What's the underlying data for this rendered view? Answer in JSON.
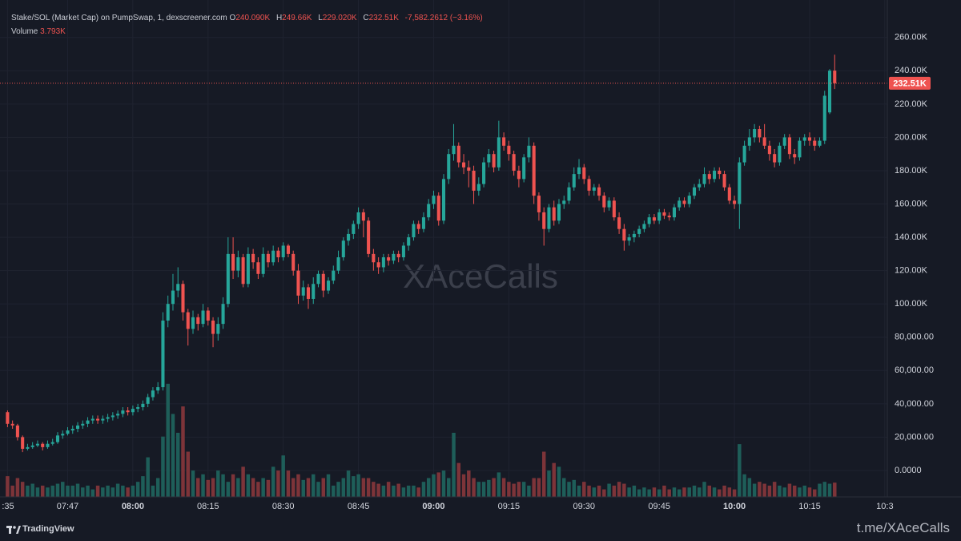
{
  "chart_data": {
    "type": "candlestick",
    "title": "Stake/SOL (Market Cap) on PumpSwap, 1, dexscreener.com",
    "ohlc_legend": {
      "o_label": "O",
      "o": "240.090K",
      "h_label": "H",
      "h": "249.66K",
      "l_label": "L",
      "l": "229.020K",
      "c_label": "C",
      "c": "232.51K",
      "change": "-7,582.2612 (−3.16%)"
    },
    "volume_label": "Volume",
    "volume_value": "3.793K",
    "last_price_label": "232.51K",
    "watermark": "XAceCalls",
    "x": [
      455,
      456,
      457,
      458,
      459,
      460,
      461,
      462,
      463,
      464,
      465,
      466,
      467,
      468,
      469,
      470,
      471,
      472,
      473,
      474,
      475,
      476,
      477,
      478,
      479,
      480,
      481,
      482,
      483,
      484,
      485,
      486,
      487,
      488,
      489,
      490,
      491,
      492,
      493,
      494,
      495,
      496,
      497,
      498,
      499,
      500,
      501,
      502,
      503,
      504,
      505,
      506,
      507,
      508,
      509,
      510,
      511,
      512,
      513,
      514,
      515,
      516,
      517,
      518,
      519,
      520,
      521,
      522,
      523,
      524,
      525,
      526,
      527,
      528,
      529,
      530,
      531,
      532,
      533,
      534,
      535,
      536,
      537,
      538,
      539,
      540,
      541,
      542,
      543,
      544,
      545,
      546,
      547,
      548,
      549,
      550,
      551,
      552,
      553,
      554,
      555,
      556,
      557,
      558,
      559,
      560,
      561,
      562,
      563,
      564,
      565,
      566,
      567,
      568,
      569,
      570,
      571,
      572,
      573,
      574,
      575,
      576,
      577,
      578,
      579,
      580,
      581,
      582,
      583,
      584,
      585,
      586,
      587,
      588,
      589,
      590,
      591,
      592,
      593,
      594,
      595,
      596,
      597,
      598,
      599,
      600,
      601,
      602,
      603,
      604,
      605,
      606,
      607,
      608,
      609,
      610,
      611,
      612,
      613,
      614,
      615,
      616,
      617,
      618,
      619,
      620
    ],
    "open": [
      35000,
      28000,
      27000,
      20000,
      13000,
      14000,
      15000,
      16000,
      14000,
      16000,
      17000,
      21000,
      22000,
      24000,
      25000,
      27000,
      28000,
      30000,
      31000,
      30000,
      31000,
      32000,
      33000,
      34000,
      36000,
      35000,
      37000,
      38000,
      40000,
      44000,
      48000,
      50000,
      90000,
      100000,
      108000,
      112000,
      95000,
      85000,
      92000,
      88000,
      96000,
      90000,
      82000,
      88000,
      100000,
      130000,
      120000,
      128000,
      112000,
      130000,
      125000,
      118000,
      130000,
      125000,
      132000,
      128000,
      135000,
      130000,
      120000,
      105000,
      110000,
      103000,
      112000,
      118000,
      108000,
      114000,
      120000,
      128000,
      138000,
      142000,
      148000,
      155000,
      150000,
      130000,
      125000,
      122000,
      128000,
      126000,
      130000,
      128000,
      135000,
      140000,
      148000,
      145000,
      152000,
      160000,
      165000,
      150000,
      175000,
      190000,
      195000,
      185000,
      182000,
      180000,
      168000,
      172000,
      185000,
      190000,
      182000,
      200000,
      195000,
      190000,
      180000,
      175000,
      188000,
      195000,
      165000,
      155000,
      145000,
      158000,
      150000,
      160000,
      162000,
      170000,
      178000,
      182000,
      175000,
      168000,
      170000,
      165000,
      158000,
      162000,
      152000,
      145000,
      138000,
      140000,
      142000,
      145000,
      148000,
      152000,
      150000,
      155000,
      153000,
      152000,
      158000,
      162000,
      160000,
      165000,
      170000,
      172000,
      178000,
      175000,
      180000,
      178000,
      170000,
      162000,
      160000,
      185000,
      195000,
      200000,
      205000,
      200000,
      195000,
      190000,
      185000,
      195000,
      200000,
      190000,
      188000,
      198000,
      200000,
      198000,
      195000,
      198000,
      215000,
      240090
    ],
    "high": [
      36000,
      30000,
      28000,
      21000,
      16000,
      17000,
      18000,
      17000,
      18000,
      19000,
      23000,
      24000,
      26000,
      27000,
      29000,
      30000,
      32000,
      33000,
      33000,
      33000,
      34000,
      35000,
      36000,
      38000,
      38000,
      39000,
      40000,
      42000,
      46000,
      50000,
      53000,
      95000,
      105000,
      118000,
      122000,
      114000,
      97000,
      96000,
      94000,
      100000,
      98000,
      92000,
      92000,
      104000,
      140000,
      140000,
      132000,
      130000,
      134000,
      133000,
      128000,
      134000,
      132000,
      135000,
      134000,
      137000,
      136000,
      132000,
      124000,
      114000,
      112000,
      116000,
      120000,
      120000,
      116000,
      123000,
      132000,
      140000,
      145000,
      150000,
      158000,
      157000,
      152000,
      133000,
      128000,
      130000,
      130000,
      132000,
      132000,
      137000,
      142000,
      150000,
      150000,
      155000,
      163000,
      168000,
      167000,
      178000,
      193000,
      208000,
      197000,
      190000,
      186000,
      183000,
      176000,
      188000,
      193000,
      192000,
      210000,
      203000,
      198000,
      192000,
      183000,
      190000,
      200000,
      197000,
      167000,
      158000,
      160000,
      162000,
      163000,
      165000,
      173000,
      182000,
      187000,
      184000,
      177000,
      172000,
      172000,
      167000,
      164000,
      164000,
      155000,
      148000,
      142000,
      144000,
      147000,
      150000,
      154000,
      154000,
      157000,
      157000,
      155000,
      160000,
      164000,
      164000,
      167000,
      172000,
      175000,
      182000,
      180000,
      182000,
      182000,
      180000,
      172000,
      165000,
      188000,
      198000,
      205000,
      208000,
      207000,
      208000,
      198000,
      193000,
      197000,
      202000,
      202000,
      193000,
      200000,
      202000,
      203000,
      200000,
      200000,
      228000,
      241000,
      249660
    ],
    "low": [
      26000,
      25000,
      18000,
      11000,
      12000,
      13000,
      14000,
      12000,
      13000,
      15000,
      16000,
      19000,
      21000,
      22000,
      23000,
      25000,
      26000,
      28000,
      28000,
      28000,
      29000,
      30000,
      31000,
      32000,
      33000,
      33000,
      35000,
      36000,
      38000,
      42000,
      46000,
      48000,
      86000,
      96000,
      104000,
      90000,
      75000,
      82000,
      84000,
      86000,
      87000,
      74000,
      78000,
      85000,
      98000,
      115000,
      116000,
      110000,
      110000,
      121000,
      115000,
      116000,
      122000,
      123000,
      125000,
      126000,
      128000,
      117000,
      100000,
      102000,
      97000,
      100000,
      110000,
      104000,
      106000,
      112000,
      118000,
      126000,
      135000,
      139000,
      145000,
      140000,
      128000,
      120000,
      118000,
      119000,
      123000,
      124000,
      125000,
      126000,
      132000,
      138000,
      142000,
      143000,
      150000,
      157000,
      147000,
      148000,
      172000,
      186000,
      182000,
      178000,
      170000,
      160000,
      165000,
      170000,
      182000,
      179000,
      180000,
      192000,
      186000,
      177000,
      170000,
      173000,
      185000,
      160000,
      150000,
      135000,
      143000,
      147000,
      148000,
      157000,
      160000,
      168000,
      175000,
      172000,
      165000,
      165000,
      162000,
      155000,
      156000,
      150000,
      142000,
      132000,
      135000,
      137000,
      140000,
      143000,
      146000,
      148000,
      148000,
      151000,
      150000,
      150000,
      156000,
      158000,
      158000,
      163000,
      168000,
      170000,
      172000,
      173000,
      175000,
      168000,
      160000,
      157000,
      145000,
      183000,
      192000,
      197000,
      197000,
      193000,
      186000,
      182000,
      183000,
      193000,
      187000,
      184000,
      186000,
      195000,
      195000,
      192000,
      194000,
      196000,
      214000,
      229020
    ],
    "close": [
      28000,
      27000,
      20000,
      13000,
      14000,
      15000,
      16000,
      14000,
      16000,
      17000,
      21000,
      22000,
      24000,
      25000,
      27000,
      28000,
      30000,
      31000,
      30000,
      31000,
      32000,
      33000,
      34000,
      36000,
      35000,
      37000,
      38000,
      40000,
      44000,
      48000,
      50000,
      90000,
      100000,
      108000,
      112000,
      95000,
      85000,
      92000,
      88000,
      96000,
      90000,
      82000,
      88000,
      100000,
      130000,
      120000,
      128000,
      112000,
      130000,
      125000,
      118000,
      130000,
      125000,
      132000,
      128000,
      135000,
      130000,
      120000,
      105000,
      110000,
      103000,
      112000,
      118000,
      108000,
      114000,
      120000,
      128000,
      138000,
      142000,
      148000,
      155000,
      150000,
      130000,
      125000,
      122000,
      128000,
      126000,
      130000,
      128000,
      135000,
      140000,
      148000,
      145000,
      152000,
      160000,
      165000,
      150000,
      175000,
      190000,
      195000,
      185000,
      182000,
      180000,
      168000,
      172000,
      185000,
      190000,
      182000,
      200000,
      195000,
      190000,
      180000,
      175000,
      188000,
      195000,
      165000,
      155000,
      145000,
      158000,
      150000,
      160000,
      162000,
      170000,
      178000,
      182000,
      175000,
      168000,
      170000,
      165000,
      158000,
      162000,
      152000,
      145000,
      138000,
      140000,
      142000,
      145000,
      148000,
      152000,
      150000,
      155000,
      153000,
      152000,
      158000,
      162000,
      160000,
      165000,
      170000,
      172000,
      178000,
      175000,
      180000,
      178000,
      170000,
      162000,
      160000,
      185000,
      195000,
      200000,
      205000,
      200000,
      195000,
      190000,
      185000,
      195000,
      200000,
      190000,
      188000,
      198000,
      200000,
      198000,
      195000,
      198000,
      225000,
      240090,
      232510
    ],
    "volume": [
      5500,
      3000,
      5000,
      4000,
      3000,
      3500,
      2500,
      3000,
      2500,
      3000,
      3500,
      4000,
      3000,
      3000,
      3500,
      2500,
      3000,
      2000,
      3000,
      2500,
      3000,
      2500,
      3500,
      3000,
      2500,
      3000,
      4000,
      5500,
      10500,
      3000,
      5000,
      16000,
      30000,
      22000,
      17000,
      24000,
      12000,
      7000,
      5000,
      6000,
      4500,
      5000,
      7000,
      6000,
      4000,
      6000,
      5000,
      8000,
      6000,
      5000,
      4000,
      5000,
      4500,
      8000,
      7000,
      11000,
      7000,
      5000,
      6000,
      4500,
      5000,
      6000,
      4000,
      5000,
      6000,
      3000,
      4000,
      5000,
      7000,
      5500,
      6000,
      5000,
      5000,
      4000,
      3500,
      3000,
      4000,
      3000,
      3500,
      2500,
      3000,
      3000,
      2500,
      4000,
      5000,
      6000,
      6500,
      7000,
      5000,
      17000,
      9000,
      6000,
      7000,
      5000,
      4000,
      4000,
      4500,
      5000,
      6500,
      5000,
      4000,
      3500,
      4000,
      4000,
      3000,
      5000,
      5000,
      12000,
      7000,
      9000,
      8000,
      5000,
      4000,
      4500,
      3000,
      4000,
      3000,
      2500,
      3000,
      2000,
      3500,
      3000,
      4000,
      3500,
      2500,
      3000,
      2000,
      2500,
      2000,
      2500,
      2000,
      3000,
      2000,
      2500,
      2000,
      2500,
      2500,
      3000,
      2500,
      4000,
      3000,
      2500,
      2000,
      3000,
      2500,
      2000,
      14000,
      6000,
      5000,
      3500,
      4000,
      3500,
      3000,
      4000,
      3000,
      2500,
      3500,
      3000,
      2500,
      3000,
      2500,
      2000,
      3500,
      4000,
      3500,
      3793
    ],
    "up_color": "#26a69a",
    "down_color": "#ef5350",
    "volume_up_color": "#1e5e59",
    "volume_down_color": "#7d3439",
    "xlim": [
      453.5,
      630.5
    ],
    "xticks": [
      {
        "value": 455,
        "label": ":35"
      },
      {
        "value": 467,
        "label": "07:47"
      },
      {
        "value": 480,
        "label": "08:00",
        "bold": true
      },
      {
        "value": 495,
        "label": "08:15"
      },
      {
        "value": 510,
        "label": "08:30"
      },
      {
        "value": 525,
        "label": "08:45"
      },
      {
        "value": 540,
        "label": "09:00",
        "bold": true
      },
      {
        "value": 555,
        "label": "09:15"
      },
      {
        "value": 570,
        "label": "09:30"
      },
      {
        "value": 585,
        "label": "09:45"
      },
      {
        "value": 600,
        "label": "10:00",
        "bold": true
      },
      {
        "value": 615,
        "label": "10:15"
      },
      {
        "value": 630,
        "label": "10:3"
      }
    ],
    "ylim": [
      -15900,
      282500
    ],
    "yticks": [
      {
        "value": 0,
        "label": "0.0000"
      },
      {
        "value": 20000,
        "label": "20,000.00"
      },
      {
        "value": 40000,
        "label": "40,000.00"
      },
      {
        "value": 60000,
        "label": "60,000.00"
      },
      {
        "value": 80000,
        "label": "80,000.00"
      },
      {
        "value": 100000,
        "label": "100.00K"
      },
      {
        "value": 120000,
        "label": "120.00K"
      },
      {
        "value": 140000,
        "label": "140.00K"
      },
      {
        "value": 160000,
        "label": "160.00K"
      },
      {
        "value": 180000,
        "label": "180.00K"
      },
      {
        "value": 200000,
        "label": "200.00K"
      },
      {
        "value": 220000,
        "label": "220.00K"
      },
      {
        "value": 240000,
        "label": "240.00K"
      },
      {
        "value": 260000,
        "label": "260.00K"
      }
    ],
    "volume_ylim": [
      0,
      34000
    ],
    "grid": true
  },
  "footer": {
    "brand": "TradingView",
    "link": "t.me/XAceCalls"
  }
}
